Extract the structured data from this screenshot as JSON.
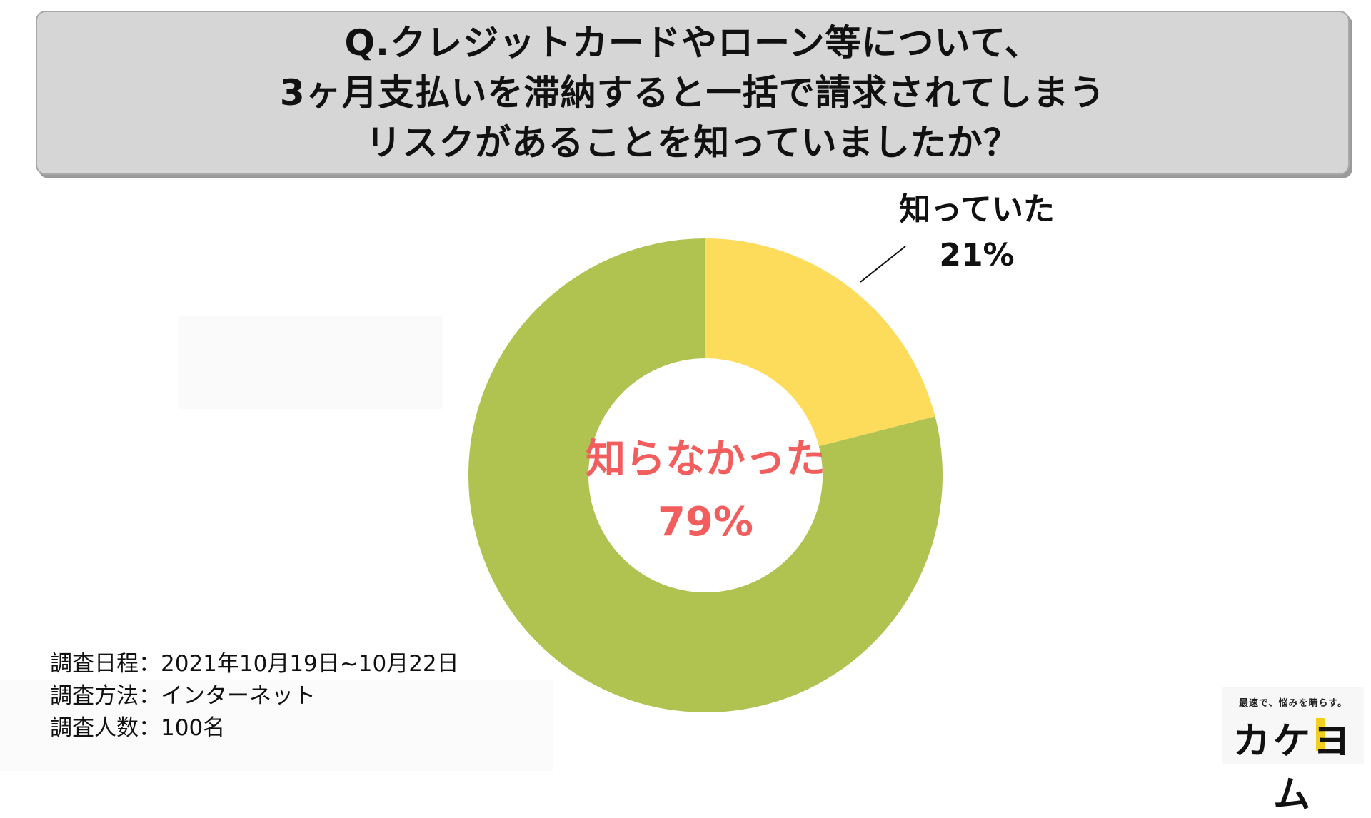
{
  "title": {
    "lines": [
      "Q.クレジットカードやローン等について、",
      "3ヶ月支払いを滞納すると一括で請求されてしまう",
      "リスクがあることを知っていましたか？"
    ]
  },
  "chart_data": {
    "type": "pie",
    "donut": true,
    "slices": [
      {
        "label": "知っていた",
        "value": 21,
        "value_label": "21%",
        "color": "#fddc5c",
        "label_color": "#111111"
      },
      {
        "label": "知らなかった",
        "value": 79,
        "value_label": "79%",
        "color": "#b0c24f",
        "label_color": "#f25e5e"
      }
    ]
  },
  "survey": {
    "date": "調査日程：2021年10月19日~10月22日",
    "method": "調査方法：インターネット",
    "count": "調査人数：100名"
  },
  "logo": {
    "tagline": "最速で、悩みを晴らす。",
    "text": "カケヨム",
    "accent_color": "#f2cf1f"
  }
}
